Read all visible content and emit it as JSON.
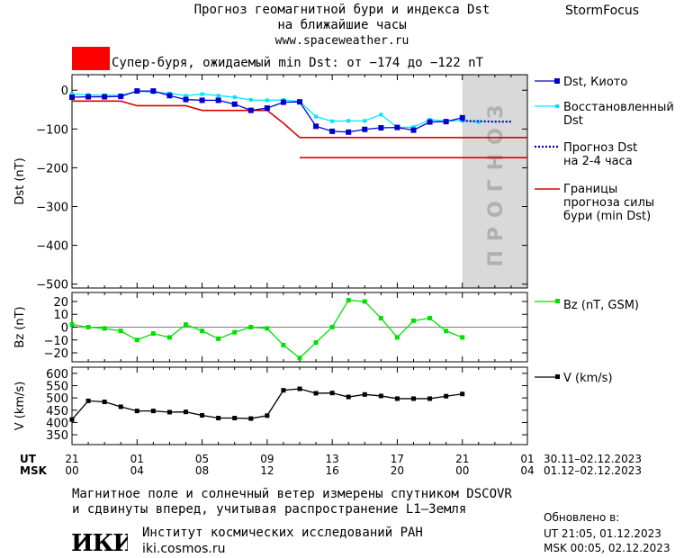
{
  "header": {
    "title_line1": "Прогноз геомагнитной бури и индекса Dst",
    "title_line2": "на ближайшие часы",
    "url": "www.spaceweather.ru",
    "brand": "StormFocus"
  },
  "storm_banner": {
    "text": "Супер-буря, ожидаемый min Dst: от −174 до −122 nT",
    "color": "#ff0000"
  },
  "footer": {
    "note_line1": "Магнитное поле и солнечный ветер измерены спутником DSCOVR",
    "note_line2": "и сдвинуты вперед, учитывая распространение L1–Земля",
    "institute": "Институт космических исследований РАН",
    "institute_url": "iki.cosmos.ru",
    "logo_text": "ИКИ",
    "updated_label": "Обновлено в:",
    "updated_ut": "UT   21:05, 01.12.2023",
    "updated_msk": "MSK 00:05, 02.12.2023"
  },
  "time_axis": {
    "ut_label": "UT",
    "msk_label": "MSK",
    "ut_ticks": [
      "21",
      "01",
      "05",
      "09",
      "13",
      "17",
      "21",
      "01"
    ],
    "msk_ticks": [
      "00",
      "04",
      "08",
      "12",
      "16",
      "20",
      "00",
      "04"
    ],
    "ut_range": "30.11–02.12.2023",
    "msk_range": "01.12–02.12.2023",
    "hours_span": [
      0,
      28
    ]
  },
  "colors": {
    "dst_kyoto": "#0000cc",
    "dst_reconstructed": "#00e5ff",
    "dst_forecast": "#0000cc",
    "storm_bounds": "#dd0000",
    "bz": "#00e000",
    "v": "#000000",
    "forecast_zone": "#d9d9d9"
  },
  "chart_data": [
    {
      "type": "line",
      "panel": "dst",
      "ylabel": "Dst (nT)",
      "ylim": [
        -510,
        40
      ],
      "yticks": [
        0,
        -100,
        -200,
        -300,
        -400,
        -500
      ],
      "forecast_zone_label": "прогноз",
      "forecast_zone_x": [
        24,
        28
      ],
      "series": [
        {
          "name": "Dst, Киото",
          "x": [
            0,
            1,
            2,
            3,
            4,
            5,
            6,
            7,
            8,
            9,
            10,
            11,
            12,
            13,
            14,
            15,
            16,
            17,
            18,
            19,
            20,
            21,
            22,
            23,
            24
          ],
          "y": [
            -18,
            -17,
            -17,
            -16,
            -2,
            -2,
            -14,
            -24,
            -26,
            -26,
            -36,
            -52,
            -46,
            -31,
            -30,
            -93,
            -106,
            -108,
            -101,
            -97,
            -96,
            -103,
            -82,
            -81,
            -71
          ]
        },
        {
          "name": "Восстановленный Dst",
          "x": [
            0,
            1,
            2,
            3,
            4,
            5,
            6,
            7,
            8,
            9,
            10,
            11,
            12,
            13,
            14,
            15,
            16,
            17,
            18,
            19,
            20,
            21,
            22,
            23,
            24,
            25
          ],
          "y": [
            -10,
            -12,
            -13,
            -13,
            -3,
            -5,
            -8,
            -14,
            -10,
            -14,
            -18,
            -25,
            -26,
            -25,
            -29,
            -68,
            -80,
            -79,
            -79,
            -63,
            -96,
            -95,
            -76,
            -79,
            -79,
            -82
          ]
        },
        {
          "name": "Прогноз Dst на 2-4 часа",
          "x": [
            24,
            25,
            26,
            27
          ],
          "y": [
            -79,
            -80,
            -81,
            -81
          ]
        },
        {
          "name": "Границы прогноза силы бури (min Dst)",
          "segments": [
            {
              "x": [
                0,
                3,
                4,
                7,
                8,
                12,
                13,
                14
              ],
              "y": [
                -28,
                -28,
                -40,
                -40,
                -52,
                -52,
                -85,
                -122
              ]
            },
            {
              "x": [
                14,
                28
              ],
              "y": [
                -122,
                -122
              ]
            },
            {
              "x": [
                14,
                28
              ],
              "y": [
                -174,
                -174
              ]
            }
          ]
        }
      ]
    },
    {
      "type": "line",
      "panel": "bz",
      "ylabel": "Bz (nT)",
      "ylim": [
        -27,
        27
      ],
      "yticks": [
        20,
        10,
        0,
        -10,
        -20
      ],
      "series": [
        {
          "name": "Bz (nT, GSM)",
          "x": [
            0,
            1,
            2,
            3,
            4,
            5,
            6,
            7,
            8,
            9,
            10,
            11,
            12,
            13,
            14,
            15,
            16,
            17,
            18,
            19,
            20,
            21,
            22,
            23,
            24
          ],
          "y": [
            2,
            0,
            -1,
            -3,
            -10,
            -5,
            -8,
            2,
            -3,
            -9,
            -4,
            0,
            -1,
            -14,
            -24,
            -12,
            0,
            21,
            20,
            7,
            -8,
            5,
            7,
            -3,
            -8
          ]
        }
      ]
    },
    {
      "type": "line",
      "panel": "v",
      "ylabel": "V (km/s)",
      "ylim": [
        310,
        625
      ],
      "yticks": [
        600,
        550,
        500,
        450,
        400,
        350
      ],
      "series": [
        {
          "name": "V (km/s)",
          "x": [
            0,
            1,
            2,
            3,
            4,
            5,
            6,
            7,
            8,
            9,
            10,
            11,
            12,
            13,
            14,
            15,
            16,
            17,
            18,
            19,
            20,
            21,
            22,
            23,
            24
          ],
          "y": [
            412,
            488,
            484,
            464,
            447,
            447,
            442,
            443,
            429,
            418,
            418,
            416,
            428,
            531,
            537,
            519,
            520,
            504,
            514,
            508,
            497,
            497,
            497,
            507,
            516
          ]
        }
      ]
    }
  ]
}
